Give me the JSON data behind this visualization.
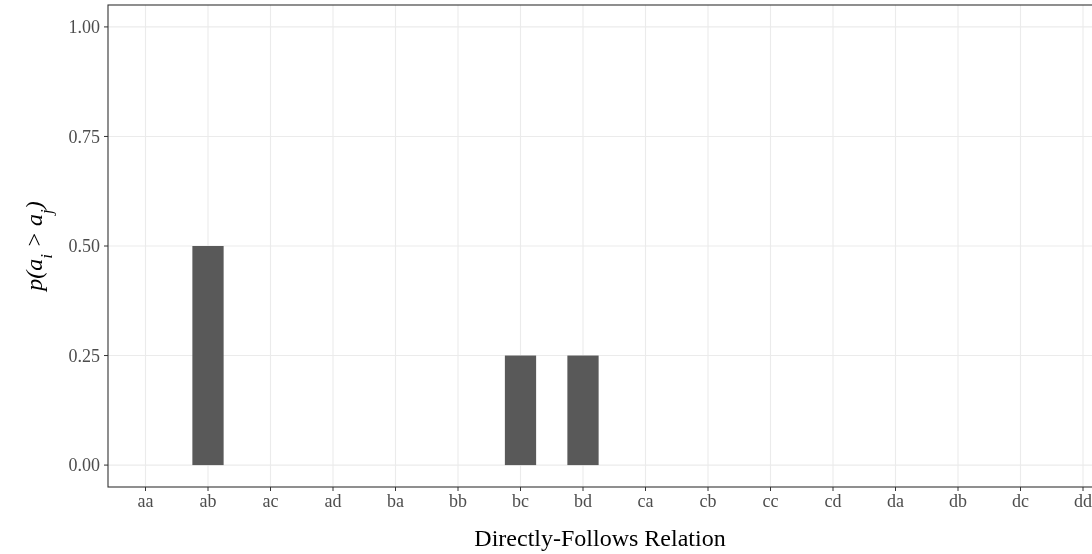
{
  "chart_data": {
    "type": "bar",
    "xlabel": "Directly-Follows Relation",
    "ylabel": "p(a$_{i}$ > a$_{j}$)",
    "categories": [
      "aa",
      "ab",
      "ac",
      "ad",
      "ba",
      "bb",
      "bc",
      "bd",
      "ca",
      "cb",
      "cc",
      "cd",
      "da",
      "db",
      "dc",
      "dd"
    ],
    "values": [
      0,
      0.5,
      0,
      0,
      0,
      0,
      0.25,
      0.25,
      0,
      0,
      0,
      0,
      0,
      0,
      0,
      0
    ],
    "color": "#595959",
    "ylim": [
      -0.05,
      1.05
    ],
    "yticks": [
      {
        "value": 0,
        "label": "0.00"
      },
      {
        "value": 0.25,
        "label": "0.25"
      },
      {
        "value": 0.5,
        "label": "0.50"
      },
      {
        "value": 0.75,
        "label": "0.75"
      },
      {
        "value": 1,
        "label": "1.00"
      }
    ],
    "grid": true
  }
}
